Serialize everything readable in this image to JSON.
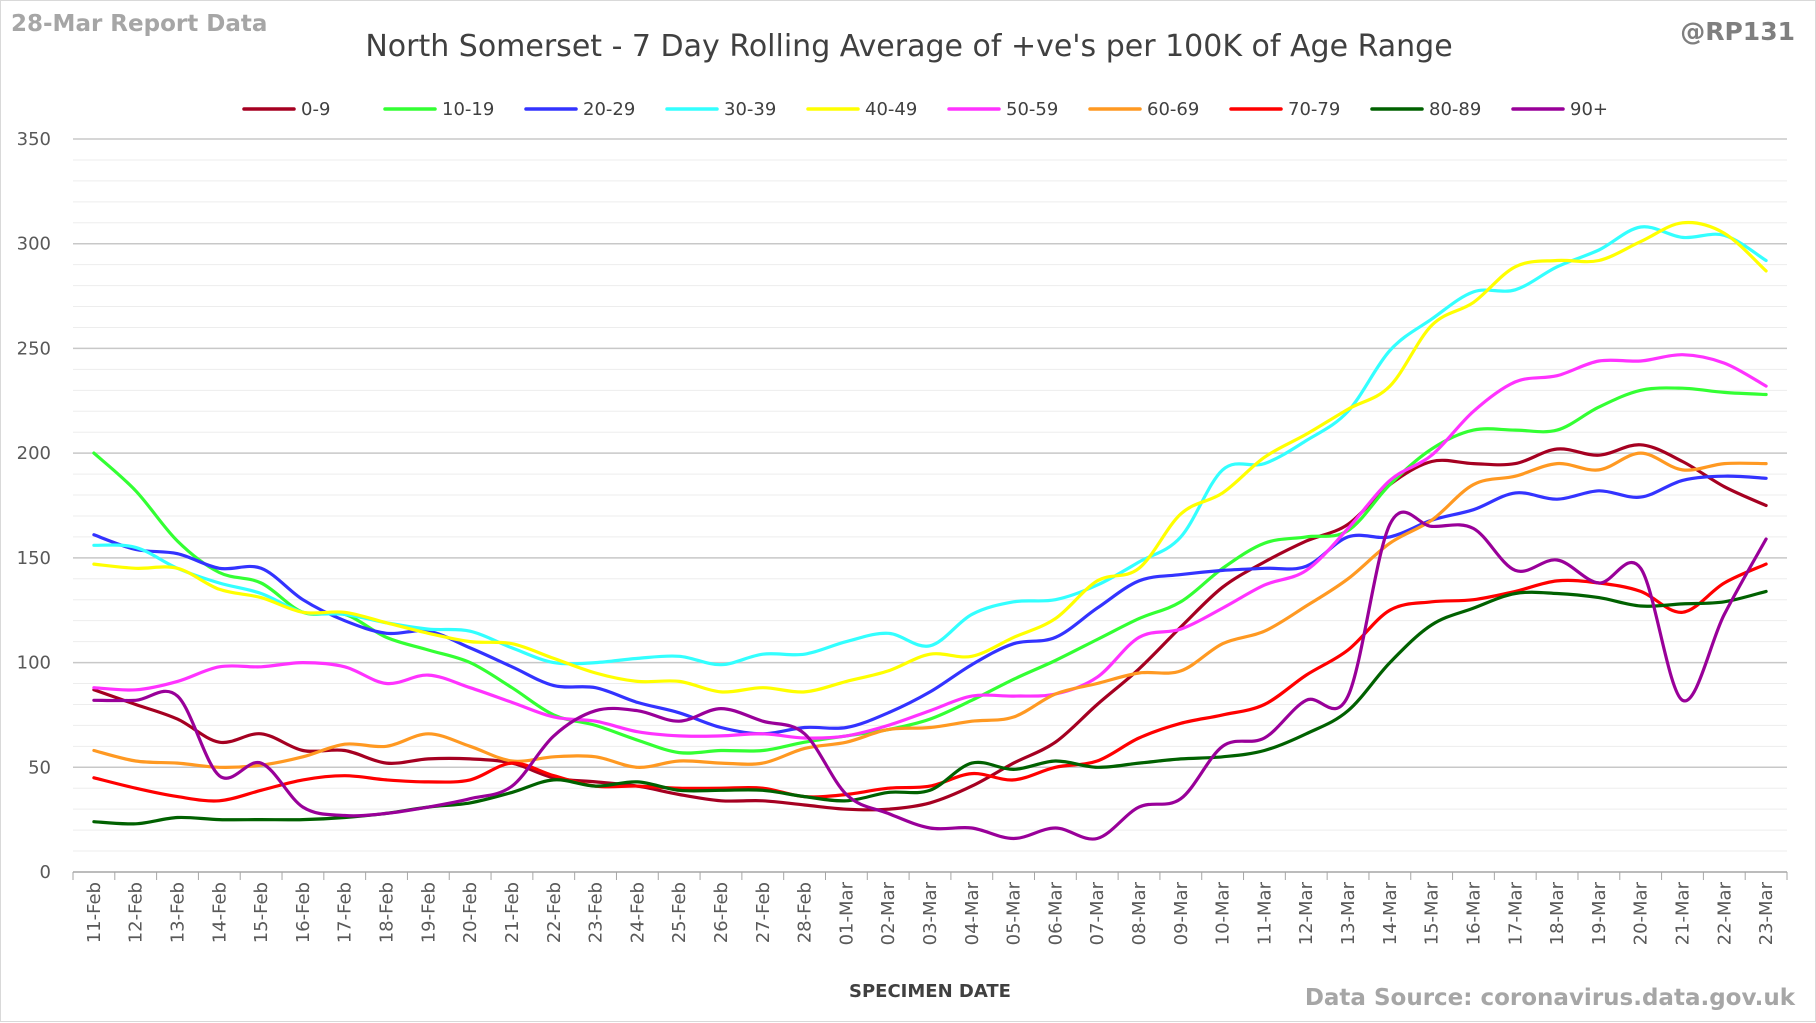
{
  "header": {
    "report_label": "28-Mar Report Data",
    "handle": "@RP131",
    "source": "Data Source: coronavirus.data.gov.uk"
  },
  "chart_data": {
    "type": "line",
    "title": "North Somerset - 7 Day Rolling Average of +ve's per 100K of Age Range",
    "xlabel": "SPECIMEN DATE",
    "ylabel": "",
    "ylim": [
      0,
      350
    ],
    "yticks": [
      0,
      50,
      100,
      150,
      200,
      250,
      300,
      350
    ],
    "grid": true,
    "legend": "top",
    "x": [
      "11-Feb",
      "12-Feb",
      "13-Feb",
      "14-Feb",
      "15-Feb",
      "16-Feb",
      "17-Feb",
      "18-Feb",
      "19-Feb",
      "20-Feb",
      "21-Feb",
      "22-Feb",
      "23-Feb",
      "24-Feb",
      "25-Feb",
      "26-Feb",
      "27-Feb",
      "28-Feb",
      "01-Mar",
      "02-Mar",
      "03-Mar",
      "04-Mar",
      "05-Mar",
      "06-Mar",
      "07-Mar",
      "08-Mar",
      "09-Mar",
      "10-Mar",
      "11-Mar",
      "12-Mar",
      "13-Mar",
      "14-Mar",
      "15-Mar",
      "16-Mar",
      "17-Mar",
      "18-Mar",
      "19-Mar",
      "20-Mar",
      "21-Mar",
      "22-Mar",
      "23-Mar"
    ],
    "series": [
      {
        "name": "0-9",
        "color": "#a50021",
        "values": [
          87,
          80,
          73,
          62,
          66,
          58,
          58,
          52,
          54,
          54,
          52,
          45,
          43,
          41,
          37,
          34,
          34,
          32,
          30,
          30,
          33,
          41,
          52,
          62,
          80,
          97,
          117,
          136,
          148,
          158,
          166,
          185,
          196,
          195,
          195,
          202,
          199,
          204,
          196,
          184,
          175
        ]
      },
      {
        "name": "10-19",
        "color": "#33ff33",
        "values": [
          200,
          182,
          158,
          143,
          138,
          124,
          123,
          112,
          106,
          100,
          88,
          75,
          70,
          63,
          57,
          58,
          58,
          62,
          65,
          68,
          73,
          82,
          92,
          101,
          111,
          121,
          129,
          145,
          157,
          160,
          163,
          185,
          202,
          211,
          211,
          211,
          222,
          230,
          231,
          229,
          228
        ]
      },
      {
        "name": "20-29",
        "color": "#3333ff",
        "values": [
          161,
          154,
          152,
          145,
          145,
          130,
          120,
          114,
          115,
          107,
          98,
          89,
          88,
          81,
          76,
          69,
          66,
          69,
          69,
          76,
          86,
          99,
          109,
          112,
          126,
          139,
          142,
          144,
          145,
          146,
          160,
          160,
          168,
          173,
          181,
          178,
          182,
          179,
          187,
          189,
          188
        ]
      },
      {
        "name": "30-39",
        "color": "#33ffff",
        "values": [
          156,
          155,
          145,
          138,
          133,
          124,
          123,
          119,
          116,
          115,
          107,
          100,
          100,
          102,
          103,
          99,
          104,
          104,
          110,
          114,
          108,
          123,
          129,
          130,
          137,
          148,
          160,
          192,
          195,
          206,
          220,
          249,
          264,
          277,
          278,
          289,
          297,
          308,
          303,
          304,
          292
        ]
      },
      {
        "name": "40-49",
        "color": "#ffff00",
        "values": [
          147,
          145,
          145,
          135,
          131,
          124,
          124,
          119,
          114,
          110,
          109,
          102,
          95,
          91,
          91,
          86,
          88,
          86,
          91,
          96,
          104,
          103,
          112,
          121,
          139,
          145,
          171,
          181,
          198,
          209,
          221,
          232,
          261,
          272,
          289,
          292,
          292,
          301,
          310,
          305,
          287
        ]
      },
      {
        "name": "50-59",
        "color": "#ff33ff",
        "values": [
          88,
          87,
          91,
          98,
          98,
          100,
          98,
          90,
          94,
          88,
          81,
          74,
          72,
          67,
          65,
          65,
          66,
          64,
          65,
          70,
          77,
          84,
          84,
          85,
          93,
          112,
          116,
          126,
          137,
          144,
          164,
          187,
          199,
          220,
          234,
          237,
          244,
          244,
          247,
          243,
          232
        ]
      },
      {
        "name": "60-69",
        "color": "#ff9922",
        "values": [
          58,
          53,
          52,
          50,
          51,
          55,
          61,
          60,
          66,
          60,
          53,
          55,
          55,
          50,
          53,
          52,
          52,
          59,
          62,
          68,
          69,
          72,
          74,
          85,
          90,
          95,
          96,
          109,
          115,
          127,
          140,
          157,
          168,
          185,
          189,
          195,
          192,
          200,
          192,
          195,
          195
        ]
      },
      {
        "name": "70-79",
        "color": "#ff0000",
        "values": [
          45,
          40,
          36,
          34,
          39,
          44,
          46,
          44,
          43,
          44,
          52,
          46,
          41,
          41,
          40,
          40,
          40,
          36,
          37,
          40,
          41,
          47,
          44,
          50,
          53,
          64,
          71,
          75,
          80,
          94,
          106,
          125,
          129,
          130,
          134,
          139,
          138,
          134,
          124,
          138,
          147
        ]
      },
      {
        "name": "80-89",
        "color": "#006100",
        "values": [
          24,
          23,
          26,
          25,
          25,
          25,
          26,
          28,
          31,
          33,
          38,
          44,
          41,
          43,
          39,
          39,
          39,
          36,
          34,
          38,
          39,
          52,
          49,
          53,
          50,
          52,
          54,
          55,
          58,
          66,
          77,
          100,
          118,
          126,
          133,
          133,
          131,
          127,
          128,
          129,
          134
        ]
      },
      {
        "name": "90+",
        "color": "#990099",
        "values": [
          82,
          82,
          84,
          46,
          52,
          31,
          27,
          28,
          31,
          35,
          41,
          65,
          77,
          77,
          72,
          78,
          72,
          66,
          37,
          28,
          21,
          21,
          16,
          21,
          16,
          31,
          35,
          60,
          64,
          82,
          84,
          166,
          165,
          164,
          144,
          149,
          138,
          145,
          82,
          123,
          159
        ]
      }
    ]
  }
}
